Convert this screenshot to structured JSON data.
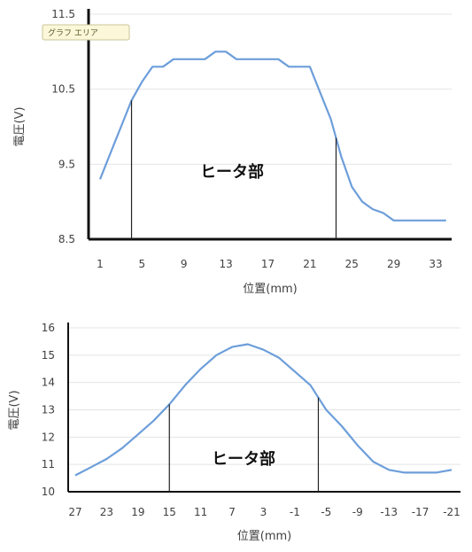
{
  "tooltip": "グラフ エリア",
  "chart_data": [
    {
      "type": "line",
      "xlabel": "位置(mm)",
      "ylabel": "電圧(V)",
      "ylim": [
        8.5,
        11.5
      ],
      "yticks": [
        "11.5",
        "10.5",
        "9.5",
        "8.5"
      ],
      "xticks": [
        "1",
        "5",
        "9",
        "13",
        "17",
        "21",
        "25",
        "29",
        "33"
      ],
      "x": [
        1,
        2,
        3,
        4,
        5,
        6,
        7,
        8,
        9,
        10,
        11,
        12,
        13,
        14,
        15,
        16,
        17,
        18,
        19,
        20,
        21,
        22,
        23,
        24,
        25,
        26,
        27,
        28,
        29,
        30,
        31,
        32,
        33,
        34
      ],
      "series": [
        {
          "values": [
            9.3,
            9.65,
            10.0,
            10.35,
            10.6,
            10.8,
            10.8,
            10.9,
            10.9,
            10.9,
            10.9,
            11.0,
            11.0,
            10.9,
            10.9,
            10.9,
            10.9,
            10.9,
            10.8,
            10.8,
            10.8,
            10.45,
            10.1,
            9.6,
            9.2,
            9.0,
            8.9,
            8.85,
            8.75,
            8.75,
            8.75,
            8.75,
            8.75,
            8.75
          ]
        }
      ],
      "markers": [
        4,
        23.5
      ],
      "region_label": "ヒータ部",
      "color": "#6d9eda"
    },
    {
      "type": "line",
      "xlabel": "位置(mm)",
      "ylabel": "電圧(V)",
      "ylim": [
        10,
        16
      ],
      "yticks": [
        "16",
        "15",
        "14",
        "13",
        "12",
        "11",
        "10"
      ],
      "xticks": [
        "27",
        "23",
        "19",
        "15",
        "11",
        "7",
        "3",
        "-1",
        "-5",
        "-9",
        "-13",
        "-17",
        "-21"
      ],
      "x": [
        27,
        25,
        23,
        21,
        19,
        17,
        15,
        13,
        11,
        9,
        7,
        5,
        3,
        1,
        -1,
        -3,
        -5,
        -7,
        -9,
        -11,
        -13,
        -15,
        -17,
        -19,
        -21
      ],
      "series": [
        {
          "values": [
            10.6,
            10.9,
            11.2,
            11.6,
            12.1,
            12.6,
            13.2,
            13.9,
            14.5,
            15.0,
            15.3,
            15.4,
            15.2,
            14.9,
            14.4,
            13.9,
            13.0,
            12.4,
            11.7,
            11.1,
            10.8,
            10.7,
            10.7,
            10.7,
            10.8
          ]
        }
      ],
      "markers": [
        15,
        -4
      ],
      "region_label": "ヒータ部",
      "color": "#6d9eda"
    }
  ]
}
